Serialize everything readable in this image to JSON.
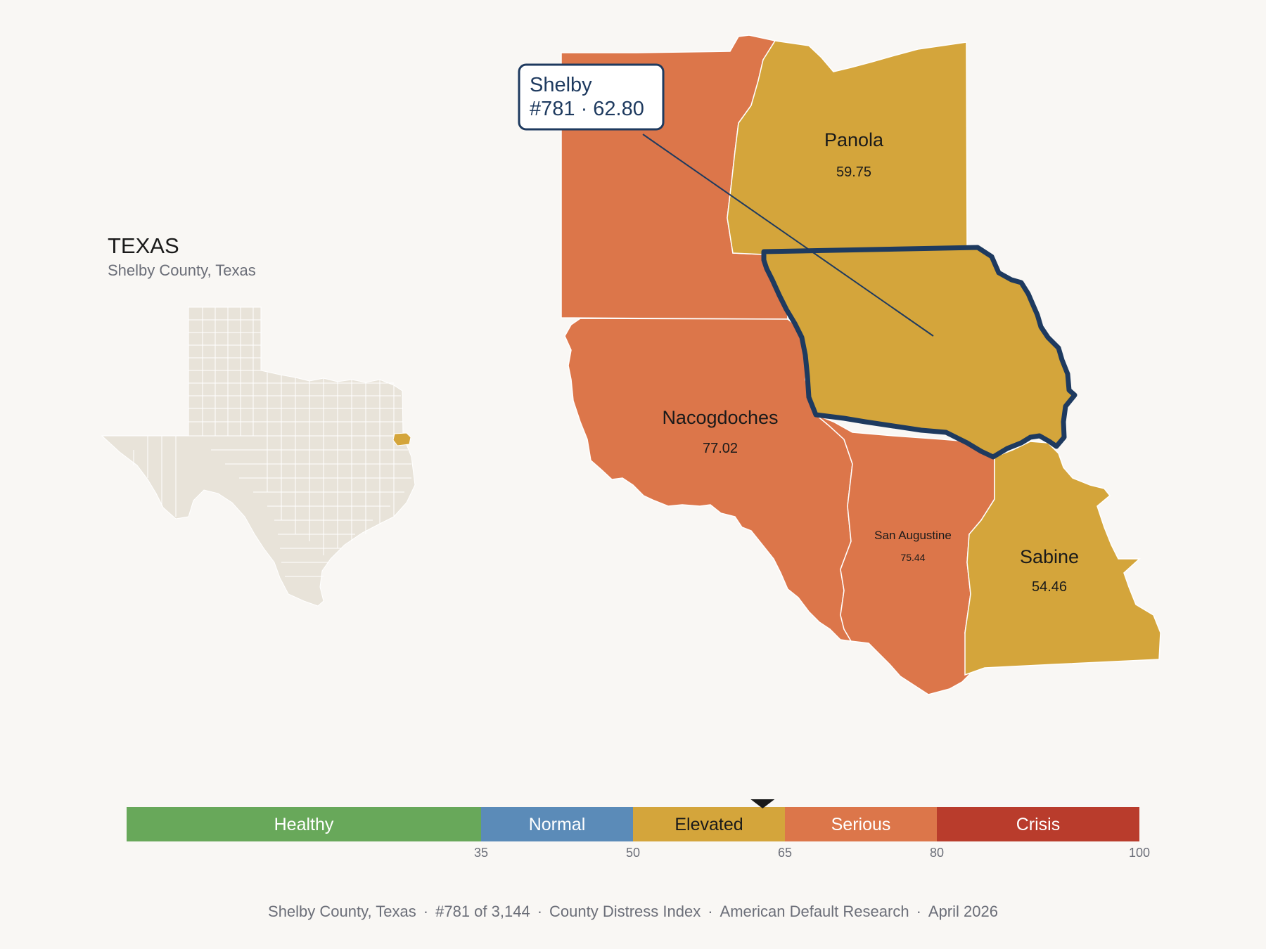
{
  "inset": {
    "title": "TEXAS",
    "subtitle": "Shelby County, Texas"
  },
  "callout": {
    "line1": "Shelby",
    "line2": "#781 · 62.80"
  },
  "counties": [
    {
      "id": "shelby",
      "name": "Shelby",
      "value": "62.80",
      "category": "Elevated"
    },
    {
      "id": "panola",
      "name": "Panola",
      "value": "59.75",
      "category": "Elevated"
    },
    {
      "id": "nacogdoches",
      "name": "Nacogdoches",
      "value": "77.02",
      "category": "Serious"
    },
    {
      "id": "san-augustine",
      "name": "San Augustine",
      "value": "75.44",
      "category": "Serious"
    },
    {
      "id": "sabine",
      "name": "Sabine",
      "value": "54.46",
      "category": "Elevated"
    },
    {
      "id": "rusk",
      "name": "",
      "value": "",
      "category": "Serious"
    }
  ],
  "legend": {
    "min": 0,
    "max": 100,
    "marker_value": 62.8,
    "bands": [
      {
        "label": "Healthy",
        "from": 0,
        "to": 35,
        "color": "#68a85a",
        "text_color": "#ffffff"
      },
      {
        "label": "Normal",
        "from": 35,
        "to": 50,
        "color": "#5b8bb8",
        "text_color": "#ffffff"
      },
      {
        "label": "Elevated",
        "from": 50,
        "to": 65,
        "color": "#d4a53b",
        "text_color": "#1a1a1a"
      },
      {
        "label": "Serious",
        "from": 65,
        "to": 80,
        "color": "#dc764a",
        "text_color": "#ffffff"
      },
      {
        "label": "Crisis",
        "from": 80,
        "to": 100,
        "color": "#b93c2c",
        "text_color": "#ffffff"
      }
    ],
    "ticks": [
      "35",
      "50",
      "65",
      "80",
      "100"
    ]
  },
  "colors": {
    "elevated": "#d4a53b",
    "serious": "#dc764a",
    "highlight_outline": "#1e3a5f",
    "inset_fill": "#e8e3d9",
    "background": "#f9f7f4"
  },
  "footer": {
    "county": "Shelby County, Texas",
    "rank": "#781 of 3,144",
    "index": "County Distress Index",
    "org": "American Default Research",
    "date": "April 2026"
  }
}
